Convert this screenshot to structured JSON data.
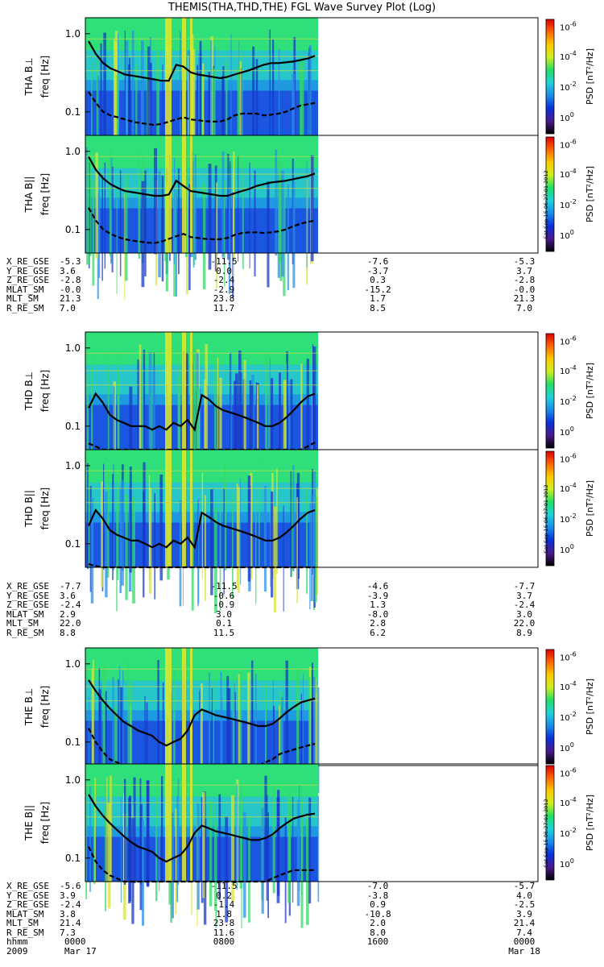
{
  "title": "THEMIS(THA,THD,THE) FGL Wave Survey Plot (Log)",
  "colorbar": {
    "label": "PSD [nT²/Hz]",
    "ticks": [
      {
        "base": "10",
        "exp": "0"
      },
      {
        "base": "10",
        "exp": "-2"
      },
      {
        "base": "10",
        "exp": "-4"
      },
      {
        "base": "10",
        "exp": "-6"
      }
    ],
    "stamp": "Sat Sep 15 06:27:01 2012",
    "colors": [
      "#000000",
      "#4a1a8c",
      "#0a2fd6",
      "#1a8ae8",
      "#22d0d8",
      "#22dd66",
      "#ccee22",
      "#ffcc00",
      "#ff6600",
      "#dd0000"
    ]
  },
  "chart_data": [
    {
      "type": "heatmap",
      "ylabel": "THA B⊥",
      "yunit": "freq [Hz]",
      "yscale": "log",
      "ylim": [
        0.05,
        1.6
      ],
      "yticks": [
        "1.0",
        "0.1"
      ],
      "x_data_fraction_range": [
        0.0,
        0.5
      ],
      "series": [
        {
          "values": [
            0.8,
            0.55,
            0.42,
            0.36,
            0.33,
            0.3,
            0.29,
            0.28,
            0.27,
            0.26,
            0.25,
            0.25,
            0.4,
            0.38,
            0.32,
            0.3,
            0.29,
            0.28,
            0.27,
            0.28,
            0.3,
            0.32,
            0.34,
            0.37,
            0.4,
            0.42,
            0.42,
            0.43,
            0.44,
            0.46,
            0.48,
            0.52
          ]
        },
        {
          "values": [
            0.18,
            0.13,
            0.1,
            0.09,
            0.085,
            0.08,
            0.075,
            0.072,
            0.07,
            0.068,
            0.07,
            0.075,
            0.08,
            0.085,
            0.08,
            0.078,
            0.076,
            0.075,
            0.075,
            0.08,
            0.09,
            0.095,
            0.095,
            0.095,
            0.09,
            0.092,
            0.095,
            0.1,
            0.11,
            0.12,
            0.125,
            0.13
          ]
        }
      ]
    },
    {
      "type": "heatmap",
      "ylabel": "THA B||",
      "yunit": "freq [Hz]",
      "yscale": "log",
      "ylim": [
        0.05,
        1.6
      ],
      "yticks": [
        "1.0",
        "0.1"
      ],
      "x_data_fraction_range": [
        0.0,
        0.5
      ],
      "series": [
        {
          "values": [
            0.85,
            0.58,
            0.45,
            0.38,
            0.34,
            0.31,
            0.3,
            0.29,
            0.28,
            0.27,
            0.27,
            0.28,
            0.42,
            0.36,
            0.31,
            0.3,
            0.29,
            0.28,
            0.27,
            0.27,
            0.29,
            0.31,
            0.33,
            0.36,
            0.38,
            0.4,
            0.41,
            0.42,
            0.44,
            0.46,
            0.48,
            0.52
          ]
        },
        {
          "values": [
            0.19,
            0.13,
            0.1,
            0.088,
            0.08,
            0.075,
            0.072,
            0.07,
            0.068,
            0.067,
            0.07,
            0.076,
            0.082,
            0.088,
            0.08,
            0.078,
            0.076,
            0.075,
            0.075,
            0.078,
            0.085,
            0.09,
            0.092,
            0.092,
            0.09,
            0.092,
            0.095,
            0.1,
            0.11,
            0.118,
            0.125,
            0.13
          ]
        }
      ]
    },
    {
      "type": "heatmap",
      "ylabel": "THD B⊥",
      "yunit": "freq [Hz]",
      "yscale": "log",
      "ylim": [
        0.05,
        1.6
      ],
      "yticks": [
        "1.0",
        "0.1"
      ],
      "x_data_fraction_range": [
        0.0,
        0.5
      ],
      "series": [
        {
          "values": [
            0.17,
            0.26,
            0.2,
            0.14,
            0.12,
            0.11,
            0.1,
            0.1,
            0.1,
            0.09,
            0.1,
            0.09,
            0.11,
            0.1,
            0.12,
            0.09,
            0.25,
            0.22,
            0.18,
            0.16,
            0.15,
            0.14,
            0.13,
            0.12,
            0.11,
            0.1,
            0.1,
            0.11,
            0.13,
            0.16,
            0.2,
            0.24,
            0.26
          ]
        },
        {
          "values": [
            0.06,
            0.055,
            0.05,
            0.05,
            0.05,
            0.05,
            0.05,
            0.05,
            0.05,
            0.05,
            0.05,
            0.05,
            0.05,
            0.05,
            0.05,
            0.05,
            0.05,
            0.05,
            0.05,
            0.05,
            0.05,
            0.05,
            0.05,
            0.05,
            0.05,
            0.05,
            0.05,
            0.05,
            0.05,
            0.05,
            0.05,
            0.055,
            0.062
          ]
        }
      ]
    },
    {
      "type": "heatmap",
      "ylabel": "THD B||",
      "yunit": "freq [Hz]",
      "yscale": "log",
      "ylim": [
        0.05,
        1.6
      ],
      "yticks": [
        "1.0",
        "0.1"
      ],
      "x_data_fraction_range": [
        0.0,
        0.5
      ],
      "series": [
        {
          "values": [
            0.17,
            0.27,
            0.21,
            0.15,
            0.13,
            0.12,
            0.11,
            0.11,
            0.1,
            0.09,
            0.1,
            0.09,
            0.11,
            0.1,
            0.12,
            0.09,
            0.25,
            0.22,
            0.19,
            0.17,
            0.16,
            0.15,
            0.14,
            0.13,
            0.12,
            0.11,
            0.11,
            0.12,
            0.14,
            0.17,
            0.21,
            0.25,
            0.27
          ]
        },
        {
          "values": [
            0.055,
            0.052,
            0.05,
            0.05,
            0.05,
            0.05,
            0.05,
            0.05,
            0.05,
            0.05,
            0.05,
            0.05,
            0.05,
            0.05,
            0.05,
            0.05,
            0.05,
            0.05,
            0.05,
            0.05,
            0.05,
            0.05,
            0.05,
            0.05,
            0.05,
            0.05,
            0.05,
            0.05,
            0.05,
            0.05,
            0.05,
            0.05,
            0.05
          ]
        }
      ]
    },
    {
      "type": "heatmap",
      "ylabel": "THE B⊥",
      "yunit": "freq [Hz]",
      "yscale": "log",
      "ylim": [
        0.05,
        1.6
      ],
      "yticks": [
        "1.0",
        "0.1"
      ],
      "x_data_fraction_range": [
        0.0,
        0.5
      ],
      "series": [
        {
          "values": [
            0.62,
            0.45,
            0.34,
            0.27,
            0.22,
            0.18,
            0.16,
            0.14,
            0.13,
            0.12,
            0.1,
            0.09,
            0.1,
            0.11,
            0.14,
            0.22,
            0.26,
            0.24,
            0.22,
            0.21,
            0.2,
            0.19,
            0.18,
            0.17,
            0.16,
            0.16,
            0.17,
            0.2,
            0.24,
            0.28,
            0.32,
            0.34,
            0.36
          ]
        },
        {
          "values": [
            0.15,
            0.1,
            0.075,
            0.06,
            0.055,
            0.05,
            0.05,
            0.05,
            0.05,
            0.05,
            0.05,
            0.05,
            0.05,
            0.05,
            0.05,
            0.05,
            0.05,
            0.05,
            0.05,
            0.05,
            0.05,
            0.05,
            0.05,
            0.05,
            0.05,
            0.055,
            0.06,
            0.07,
            0.075,
            0.08,
            0.085,
            0.09,
            0.095
          ]
        }
      ]
    },
    {
      "type": "heatmap",
      "ylabel": "THE B||",
      "yunit": "freq [Hz]",
      "yscale": "log",
      "ylim": [
        0.05,
        1.6
      ],
      "yticks": [
        "1.0",
        "0.1"
      ],
      "x_data_fraction_range": [
        0.0,
        0.5
      ],
      "series": [
        {
          "values": [
            0.65,
            0.46,
            0.35,
            0.28,
            0.23,
            0.19,
            0.16,
            0.14,
            0.13,
            0.12,
            0.1,
            0.09,
            0.1,
            0.11,
            0.14,
            0.21,
            0.26,
            0.24,
            0.22,
            0.21,
            0.2,
            0.19,
            0.18,
            0.17,
            0.17,
            0.18,
            0.2,
            0.24,
            0.28,
            0.32,
            0.34,
            0.36,
            0.37
          ]
        },
        {
          "values": [
            0.14,
            0.09,
            0.07,
            0.06,
            0.055,
            0.05,
            0.05,
            0.05,
            0.05,
            0.05,
            0.05,
            0.05,
            0.05,
            0.05,
            0.05,
            0.05,
            0.05,
            0.05,
            0.05,
            0.05,
            0.05,
            0.05,
            0.05,
            0.05,
            0.05,
            0.05,
            0.055,
            0.06,
            0.065,
            0.07,
            0.07,
            0.07,
            0.07
          ]
        }
      ]
    }
  ],
  "ephemeris": [
    {
      "rows": [
        {
          "label": "X_RE_GSE",
          "vals": [
            "-5.3",
            "-11.5",
            "-7.6",
            "-5.3"
          ]
        },
        {
          "label": "Y_RE_GSE",
          "vals": [
            "3.6",
            "0.0",
            "-3.7",
            "3.7"
          ]
        },
        {
          "label": "Z_RE_GSE",
          "vals": [
            "-2.8",
            "-2.4",
            "0.3",
            "-2.8"
          ]
        },
        {
          "label": "MLAT_SM",
          "vals": [
            "-0.0",
            "-2.9",
            "-15.2",
            "-0.0"
          ]
        },
        {
          "label": "MLT_SM",
          "vals": [
            "21.3",
            "23.8",
            "1.7",
            "21.3"
          ]
        },
        {
          "label": "R_RE_SM",
          "vals": [
            "7.0",
            "11.7",
            "8.5",
            "7.0"
          ]
        }
      ]
    },
    {
      "rows": [
        {
          "label": "X_RE_GSE",
          "vals": [
            "-7.7",
            "-11.5",
            "-4.6",
            "-7.7"
          ]
        },
        {
          "label": "Y_RE_GSE",
          "vals": [
            "3.6",
            "-0.6",
            "-3.9",
            "3.7"
          ]
        },
        {
          "label": "Z_RE_GSE",
          "vals": [
            "-2.4",
            "-0.9",
            "1.3",
            "-2.4"
          ]
        },
        {
          "label": "MLAT_SM",
          "vals": [
            "2.9",
            "3.0",
            "-8.0",
            "3.0"
          ]
        },
        {
          "label": "MLT_SM",
          "vals": [
            "22.0",
            "0.1",
            "2.8",
            "22.0"
          ]
        },
        {
          "label": "R_RE_SM",
          "vals": [
            "8.8",
            "11.5",
            "6.2",
            "8.9"
          ]
        }
      ]
    },
    {
      "rows": [
        {
          "label": "X_RE_GSE",
          "vals": [
            "-5.6",
            "-11.5",
            "-7.0",
            "-5.7"
          ]
        },
        {
          "label": "Y_RE_GSE",
          "vals": [
            "3.9",
            "0.2",
            "-3.8",
            "4.0"
          ]
        },
        {
          "label": "Z_RE_GSE",
          "vals": [
            "-2.4",
            "-1.4",
            "0.9",
            "-2.5"
          ]
        },
        {
          "label": "MLAT_SM",
          "vals": [
            "3.8",
            "1.8",
            "-10.8",
            "3.9"
          ]
        },
        {
          "label": "MLT_SM",
          "vals": [
            "21.4",
            "23.8",
            "2.0",
            "21.4"
          ]
        },
        {
          "label": "R_RE_SM",
          "vals": [
            "7.3",
            "11.6",
            "8.0",
            "7.4"
          ]
        },
        {
          "label": "hhmm",
          "vals": [
            "0000",
            "0800",
            "1600",
            "0000"
          ]
        },
        {
          "label": "2009",
          "vals": [
            "Mar 17",
            "",
            "",
            "Mar 18"
          ]
        }
      ]
    }
  ]
}
